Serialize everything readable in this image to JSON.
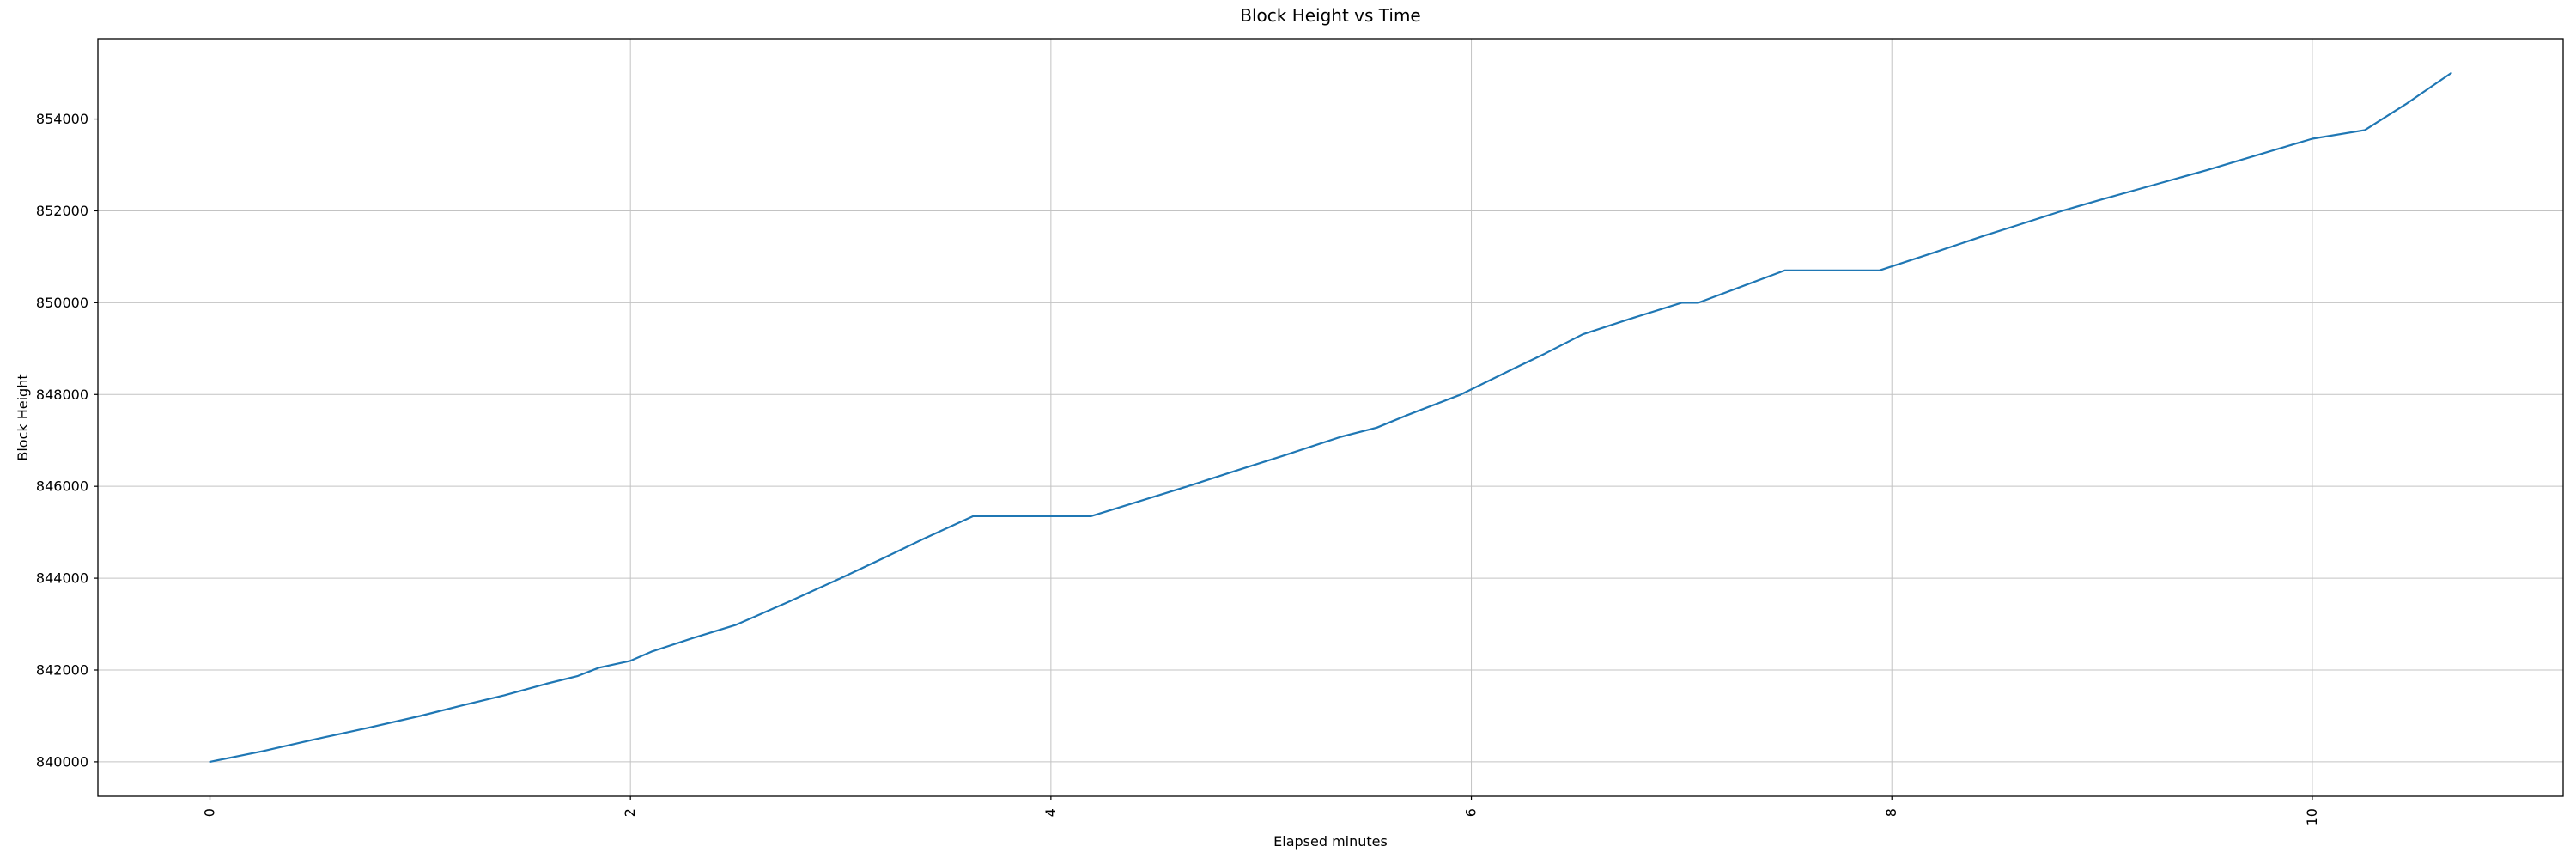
{
  "chart_data": {
    "type": "line",
    "title": "Block Height vs Time",
    "xlabel": "Elapsed minutes",
    "ylabel": "Block Height",
    "xlim": [
      -0.533,
      11.193
    ],
    "ylim": [
      839250,
      855750
    ],
    "x_ticks": [
      0,
      2,
      4,
      6,
      8,
      10
    ],
    "y_ticks": [
      840000,
      842000,
      844000,
      846000,
      848000,
      850000,
      852000,
      854000
    ],
    "x_tick_rotation": 90,
    "grid": true,
    "legend": "none",
    "grid_color": "#c3c3c3",
    "spine_color": "#000000",
    "text_color": "#000000",
    "background": "#ffffff",
    "series": [
      {
        "name": "block-height",
        "color": "#1f77b4",
        "points": [
          [
            0.0,
            840000
          ],
          [
            0.25,
            840230
          ],
          [
            0.5,
            840490
          ],
          [
            0.75,
            840740
          ],
          [
            1.0,
            841000
          ],
          [
            1.2,
            841230
          ],
          [
            1.4,
            841450
          ],
          [
            1.6,
            841700
          ],
          [
            1.75,
            841870
          ],
          [
            1.85,
            842050
          ],
          [
            2.0,
            842200
          ],
          [
            2.1,
            842400
          ],
          [
            2.3,
            842700
          ],
          [
            2.5,
            842980
          ],
          [
            2.75,
            843480
          ],
          [
            3.0,
            844000
          ],
          [
            3.2,
            844430
          ],
          [
            3.4,
            844870
          ],
          [
            3.63,
            845350
          ],
          [
            4.19,
            845350
          ],
          [
            4.65,
            846000
          ],
          [
            4.9,
            846370
          ],
          [
            5.1,
            846660
          ],
          [
            5.38,
            847080
          ],
          [
            5.55,
            847280
          ],
          [
            5.7,
            847560
          ],
          [
            5.95,
            848000
          ],
          [
            6.2,
            848560
          ],
          [
            6.35,
            848890
          ],
          [
            6.53,
            849310
          ],
          [
            6.75,
            849640
          ],
          [
            7.0,
            850000
          ],
          [
            7.08,
            850000
          ],
          [
            7.49,
            850700
          ],
          [
            7.94,
            850700
          ],
          [
            8.2,
            851090
          ],
          [
            8.44,
            851460
          ],
          [
            8.6,
            851690
          ],
          [
            8.81,
            852000
          ],
          [
            9.0,
            852250
          ],
          [
            9.25,
            852570
          ],
          [
            9.5,
            852890
          ],
          [
            9.75,
            853230
          ],
          [
            10.0,
            853570
          ],
          [
            10.25,
            853760
          ],
          [
            10.45,
            854340
          ],
          [
            10.66,
            855000
          ]
        ]
      }
    ]
  }
}
